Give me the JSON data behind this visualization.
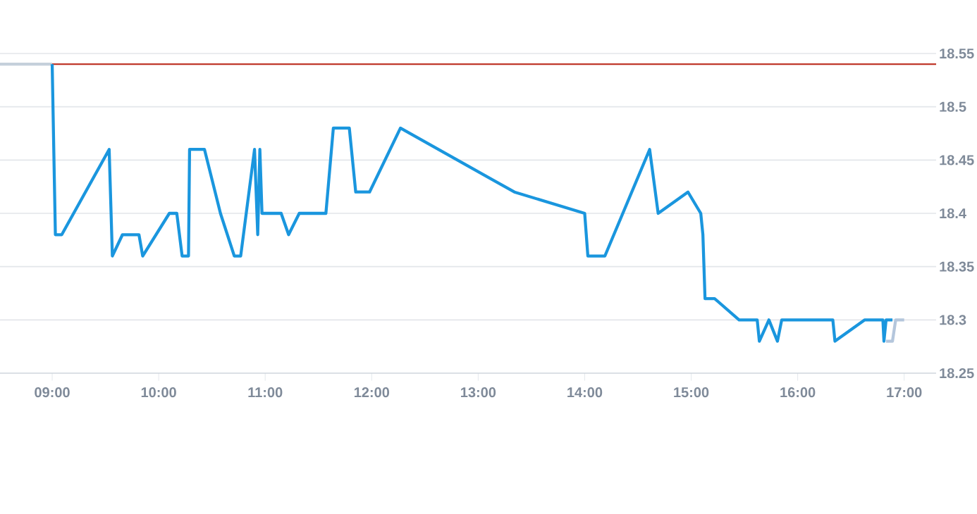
{
  "chart_data": {
    "type": "line",
    "xlim": [
      8.51,
      17.3
    ],
    "ylim": [
      18.25,
      18.55
    ],
    "xticks": [
      {
        "value": 9,
        "label": "09:00"
      },
      {
        "value": 10,
        "label": "10:00"
      },
      {
        "value": 11,
        "label": "11:00"
      },
      {
        "value": 12,
        "label": "12:00"
      },
      {
        "value": 13,
        "label": "13:00"
      },
      {
        "value": 14,
        "label": "14:00"
      },
      {
        "value": 15,
        "label": "15:00"
      },
      {
        "value": 16,
        "label": "16:00"
      },
      {
        "value": 17,
        "label": "17:00"
      }
    ],
    "yticks": [
      18.25,
      18.3,
      18.35,
      18.4,
      18.45,
      18.5,
      18.55
    ],
    "grid": "y",
    "marker": "none",
    "line_style": "solid",
    "ref_lines": [
      {
        "axis": "y",
        "value": 18.54,
        "color": "#c0392b",
        "line_style": "solid"
      }
    ],
    "series": [
      {
        "color": "#c5d0db",
        "x": [
          8.51,
          9.0
        ],
        "values": [
          18.54,
          18.54
        ]
      },
      {
        "color": "#1a96de",
        "x": [
          9.0,
          9.03,
          9.09,
          9.535,
          9.565,
          9.66,
          9.815,
          9.85,
          10.1,
          10.17,
          10.22,
          10.28,
          10.29,
          10.43,
          10.58,
          10.71,
          10.77,
          10.9,
          10.93,
          10.95,
          10.97,
          11.15,
          11.22,
          11.32,
          11.57,
          11.64,
          11.79,
          11.85,
          11.98,
          12.27,
          13.34,
          14.0,
          14.03,
          14.19,
          14.61,
          14.69,
          14.97,
          15.09,
          15.11,
          15.13,
          15.22,
          15.45,
          15.62,
          15.64,
          15.73,
          15.81,
          15.85,
          16.33,
          16.35,
          16.63,
          16.8,
          16.81,
          16.83,
          16.89
        ],
        "values": [
          18.54,
          18.38,
          18.38,
          18.46,
          18.36,
          18.38,
          18.38,
          18.36,
          18.4,
          18.4,
          18.36,
          18.36,
          18.46,
          18.46,
          18.4,
          18.36,
          18.36,
          18.46,
          18.38,
          18.46,
          18.4,
          18.4,
          18.38,
          18.4,
          18.4,
          18.48,
          18.48,
          18.42,
          18.42,
          18.48,
          18.42,
          18.4,
          18.36,
          18.36,
          18.46,
          18.4,
          18.42,
          18.4,
          18.38,
          18.32,
          18.32,
          18.3,
          18.3,
          18.28,
          18.3,
          18.28,
          18.3,
          18.3,
          18.28,
          18.3,
          18.3,
          18.28,
          18.3,
          18.3
        ]
      },
      {
        "color": "#b4c6dc",
        "x": [
          16.83,
          16.89,
          16.92,
          17.0
        ],
        "values": [
          18.28,
          18.28,
          18.3,
          18.3
        ]
      }
    ]
  }
}
